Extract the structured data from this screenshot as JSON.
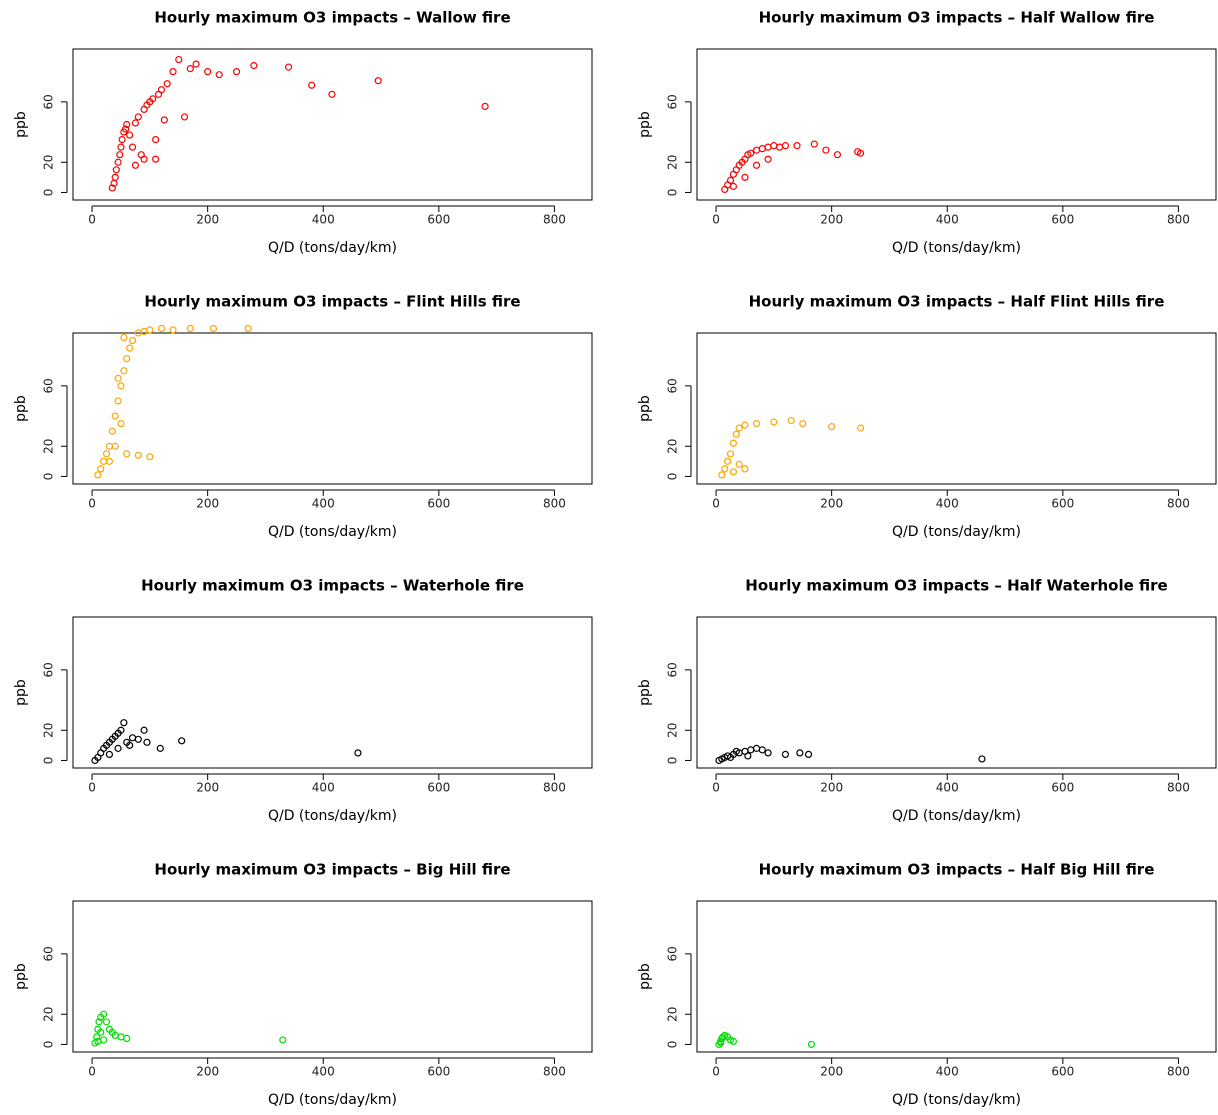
{
  "chart_data": [
    {
      "type": "scatter",
      "title": "Hourly maximum O3 impacts – Wallow fire",
      "x_label": "Q/D (tons/day/km)",
      "y_label": "ppb",
      "color": "#ff0000",
      "x": [
        35,
        38,
        40,
        42,
        45,
        48,
        50,
        52,
        55,
        58,
        60,
        65,
        70,
        75,
        80,
        85,
        90,
        95,
        100,
        105,
        110,
        115,
        120,
        125,
        130,
        140,
        150,
        160,
        170,
        180,
        200,
        220,
        250,
        280,
        340,
        380,
        415,
        495,
        680,
        75,
        90,
        110
      ],
      "y": [
        3,
        6,
        10,
        15,
        20,
        25,
        30,
        35,
        40,
        42,
        45,
        38,
        30,
        46,
        50,
        25,
        55,
        58,
        60,
        62,
        35,
        65,
        68,
        48,
        72,
        80,
        88,
        50,
        82,
        85,
        80,
        78,
        80,
        84,
        83,
        71,
        65,
        74,
        57,
        18,
        22,
        22
      ],
      "xlim": [
        -33,
        865
      ],
      "ylim": [
        -5,
        95
      ],
      "xticks": [
        0,
        200,
        400,
        600,
        800
      ],
      "yticks": [
        0,
        20,
        60
      ]
    },
    {
      "type": "scatter",
      "title": "Hourly maximum O3 impacts – Half Wallow fire",
      "x_label": "Q/D (tons/day/km)",
      "y_label": "ppb",
      "color": "#ff0000",
      "x": [
        15,
        20,
        25,
        30,
        35,
        40,
        45,
        50,
        55,
        60,
        70,
        80,
        90,
        100,
        110,
        120,
        140,
        170,
        190,
        210,
        245,
        250,
        30,
        50,
        70,
        90
      ],
      "y": [
        2,
        5,
        8,
        12,
        15,
        18,
        20,
        22,
        25,
        26,
        28,
        29,
        30,
        31,
        30,
        31,
        31,
        32,
        28,
        25,
        27,
        26,
        4,
        10,
        18,
        22
      ],
      "xlim": [
        -33,
        865
      ],
      "ylim": [
        -5,
        95
      ],
      "xticks": [
        0,
        200,
        400,
        600,
        800
      ],
      "yticks": [
        0,
        20,
        60
      ]
    },
    {
      "type": "scatter",
      "title": "Hourly maximum O3 impacts – Flint Hills fire",
      "x_label": "Q/D (tons/day/km)",
      "y_label": "ppb",
      "color": "#ffa500",
      "x": [
        10,
        15,
        20,
        25,
        30,
        35,
        40,
        45,
        50,
        55,
        60,
        65,
        70,
        80,
        90,
        100,
        120,
        140,
        170,
        210,
        270,
        60,
        80,
        100,
        40,
        30,
        50,
        45,
        55
      ],
      "y": [
        1,
        5,
        10,
        15,
        20,
        30,
        40,
        50,
        60,
        70,
        78,
        85,
        90,
        95,
        96,
        97,
        98,
        97,
        98,
        98,
        98,
        15,
        14,
        13,
        20,
        10,
        35,
        65,
        92
      ],
      "xlim": [
        -33,
        865
      ],
      "ylim": [
        -5,
        95
      ],
      "xticks": [
        0,
        200,
        400,
        600,
        800
      ],
      "yticks": [
        0,
        20,
        60
      ]
    },
    {
      "type": "scatter",
      "title": "Hourly maximum O3 impacts – Half Flint Hills fire",
      "x_label": "Q/D (tons/day/km)",
      "y_label": "ppb",
      "color": "#ffa500",
      "x": [
        10,
        15,
        20,
        25,
        30,
        35,
        40,
        50,
        70,
        100,
        130,
        150,
        200,
        250,
        40,
        50,
        30
      ],
      "y": [
        1,
        5,
        10,
        15,
        22,
        28,
        32,
        34,
        35,
        36,
        37,
        35,
        33,
        32,
        8,
        5,
        3
      ],
      "xlim": [
        -33,
        865
      ],
      "ylim": [
        -5,
        95
      ],
      "xticks": [
        0,
        200,
        400,
        600,
        800
      ],
      "yticks": [
        0,
        20,
        60
      ]
    },
    {
      "type": "scatter",
      "title": "Hourly maximum O3 impacts – Waterhole fire",
      "x_label": "Q/D (tons/day/km)",
      "y_label": "ppb",
      "color": "#000000",
      "x": [
        5,
        10,
        15,
        20,
        25,
        30,
        35,
        40,
        45,
        50,
        55,
        60,
        70,
        80,
        90,
        95,
        118,
        155,
        460,
        30,
        45,
        65
      ],
      "y": [
        0,
        2,
        5,
        8,
        10,
        12,
        14,
        16,
        18,
        20,
        25,
        12,
        15,
        14,
        20,
        12,
        8,
        13,
        5,
        4,
        8,
        10
      ],
      "xlim": [
        -33,
        865
      ],
      "ylim": [
        -5,
        95
      ],
      "xticks": [
        0,
        200,
        400,
        600,
        800
      ],
      "yticks": [
        0,
        20,
        60
      ]
    },
    {
      "type": "scatter",
      "title": "Hourly maximum O3 impacts – Half Waterhole fire",
      "x_label": "Q/D (tons/day/km)",
      "y_label": "ppb",
      "color": "#000000",
      "x": [
        5,
        10,
        15,
        20,
        30,
        40,
        50,
        60,
        70,
        80,
        90,
        120,
        145,
        160,
        460,
        25,
        35,
        55
      ],
      "y": [
        0,
        1,
        2,
        3,
        4,
        5,
        6,
        7,
        8,
        7,
        5,
        4,
        5,
        4,
        1,
        2,
        6,
        3
      ],
      "xlim": [
        -33,
        865
      ],
      "ylim": [
        -5,
        95
      ],
      "xticks": [
        0,
        200,
        400,
        600,
        800
      ],
      "yticks": [
        0,
        20,
        60
      ]
    },
    {
      "type": "scatter",
      "title": "Hourly maximum O3 impacts – Big Hill fire",
      "x_label": "Q/D (tons/day/km)",
      "y_label": "ppb",
      "color": "#00dd00",
      "x": [
        5,
        8,
        10,
        12,
        15,
        20,
        25,
        30,
        35,
        40,
        50,
        60,
        20,
        15,
        10,
        330
      ],
      "y": [
        1,
        5,
        10,
        15,
        18,
        20,
        15,
        10,
        8,
        6,
        5,
        4,
        3,
        8,
        2,
        3
      ],
      "xlim": [
        -33,
        865
      ],
      "ylim": [
        -5,
        95
      ],
      "xticks": [
        0,
        200,
        400,
        600,
        800
      ],
      "yticks": [
        0,
        20,
        60
      ]
    },
    {
      "type": "scatter",
      "title": "Hourly maximum O3 impacts – Half Big Hill fire",
      "x_label": "Q/D (tons/day/km)",
      "y_label": "ppb",
      "color": "#00dd00",
      "x": [
        5,
        8,
        10,
        12,
        15,
        20,
        25,
        30,
        8,
        165
      ],
      "y": [
        0,
        2,
        4,
        5,
        6,
        5,
        3,
        2,
        1,
        0
      ],
      "xlim": [
        -33,
        865
      ],
      "ylim": [
        -5,
        95
      ],
      "xticks": [
        0,
        200,
        400,
        600,
        800
      ],
      "yticks": [
        0,
        20,
        60
      ]
    }
  ]
}
